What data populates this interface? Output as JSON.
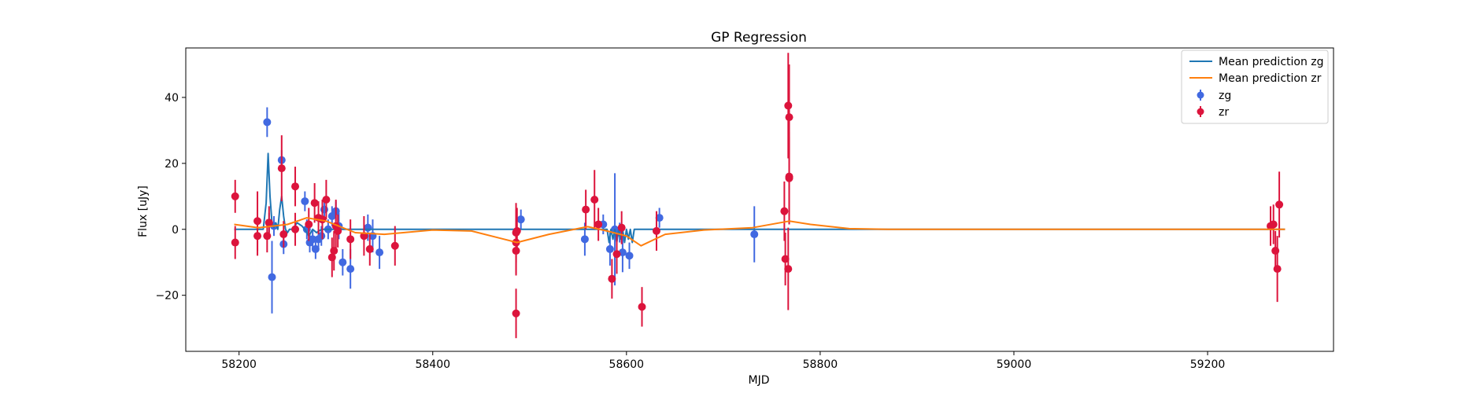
{
  "chart_data": {
    "type": "scatter",
    "title": "GP Regression",
    "xlabel": "MJD",
    "ylabel": "Flux [uJy]",
    "xlim": [
      58145,
      59330
    ],
    "ylim": [
      -37,
      55
    ],
    "xticks": [
      58200,
      58400,
      58600,
      58800,
      59000,
      59200
    ],
    "yticks": [
      -20,
      0,
      20,
      40
    ],
    "legend": {
      "position": "top-right",
      "entries": [
        "Mean prediction zg",
        "Mean prediction zr",
        "zg",
        "zr"
      ]
    },
    "colors": {
      "zg_line": "#1f77b4",
      "zr_line": "#ff7f0e",
      "zg_points": "#4169e1",
      "zr_points": "#dc143c"
    },
    "series": [
      {
        "name": "Mean prediction zg",
        "kind": "line",
        "x": [
          58195,
          58225,
          58228,
          58230,
          58232,
          58234,
          58236,
          58238,
          58240,
          58242,
          58244,
          58246,
          58248,
          58250,
          58252,
          58255,
          58260,
          58265,
          58268,
          58272,
          58276,
          58280,
          58285,
          58290,
          58300,
          58320,
          58400,
          58550,
          58580,
          58582,
          58584,
          58586,
          58588,
          58590,
          58592,
          58594,
          58596,
          58598,
          58600,
          58602,
          58604,
          58606,
          58608,
          58612,
          58700,
          58900,
          59280
        ],
        "y": [
          0,
          0,
          8,
          23,
          10,
          2,
          0.5,
          2,
          0,
          6,
          10,
          4,
          0,
          -1,
          0,
          0,
          2,
          1,
          0,
          -2,
          0,
          -1,
          0,
          0,
          0,
          0,
          0,
          0,
          0,
          -4,
          0,
          -3,
          0,
          -4,
          0,
          -3,
          0,
          -4,
          0,
          -3,
          0,
          -4,
          0,
          0,
          0,
          0,
          0
        ]
      },
      {
        "name": "Mean prediction zr",
        "kind": "line",
        "x": [
          58195,
          58220,
          58250,
          58270,
          58290,
          58320,
          58350,
          58400,
          58440,
          58487,
          58520,
          58560,
          58580,
          58600,
          58615,
          58640,
          58680,
          58730,
          58768,
          58790,
          58830,
          58870,
          59000,
          59280
        ],
        "y": [
          1.5,
          0.5,
          1.5,
          3.5,
          2.5,
          -1,
          -1.5,
          -0.2,
          -0.5,
          -4,
          -1.5,
          0.8,
          -0.5,
          -2,
          -5,
          -1.5,
          -0.2,
          0.5,
          2.5,
          1.5,
          0.2,
          0,
          0,
          0
        ]
      },
      {
        "name": "zg",
        "kind": "errorbar",
        "points": [
          [
            58229,
            32.5,
            4.5
          ],
          [
            58231,
            2,
            3
          ],
          [
            58234,
            -14.5,
            11
          ],
          [
            58236,
            1,
            3
          ],
          [
            58244,
            21,
            3
          ],
          [
            58246,
            -4.5,
            3
          ],
          [
            58268,
            8.5,
            3
          ],
          [
            58270,
            0,
            3
          ],
          [
            58273,
            -4,
            3
          ],
          [
            58276,
            -3,
            3
          ],
          [
            58279,
            -6,
            3
          ],
          [
            58282,
            -3,
            3
          ],
          [
            58285,
            -2,
            3
          ],
          [
            58288,
            6,
            3
          ],
          [
            58292,
            0,
            3
          ],
          [
            58296,
            4,
            3
          ],
          [
            58300,
            5.5,
            3
          ],
          [
            58303,
            1,
            4
          ],
          [
            58307,
            -10,
            4
          ],
          [
            58315,
            -12,
            6
          ],
          [
            58333,
            0.5,
            4
          ],
          [
            58338,
            -2,
            5
          ],
          [
            58345,
            -7,
            5
          ],
          [
            58491,
            3,
            3
          ],
          [
            58557,
            -3,
            5
          ],
          [
            58576,
            1.5,
            3
          ],
          [
            58583,
            -6,
            5
          ],
          [
            58588,
            0,
            17
          ],
          [
            58593,
            -1,
            3
          ],
          [
            58596,
            -7,
            6
          ],
          [
            58603,
            -8,
            4
          ],
          [
            58634,
            3.5,
            3
          ],
          [
            58732,
            -1.5,
            8.5
          ]
        ]
      },
      {
        "name": "zr",
        "kind": "errorbar",
        "points": [
          [
            58196,
            10,
            5
          ],
          [
            58196,
            -4,
            5
          ],
          [
            58219,
            2.5,
            9
          ],
          [
            58219,
            -2,
            6
          ],
          [
            58229,
            -2,
            5
          ],
          [
            58231,
            2,
            5
          ],
          [
            58244,
            18.5,
            10
          ],
          [
            58246,
            -1.5,
            4
          ],
          [
            58258,
            13,
            6
          ],
          [
            58258,
            0,
            5
          ],
          [
            58272,
            1.5,
            5
          ],
          [
            58278,
            8,
            6
          ],
          [
            58282,
            3.5,
            5
          ],
          [
            58286,
            3,
            6
          ],
          [
            58290,
            9,
            6
          ],
          [
            58296,
            -8.5,
            6
          ],
          [
            58298,
            -6.5,
            6
          ],
          [
            58300,
            1,
            8
          ],
          [
            58302,
            -0.5,
            5
          ],
          [
            58315,
            -3,
            6
          ],
          [
            58329,
            -2,
            6
          ],
          [
            58335,
            -6,
            5
          ],
          [
            58361,
            -5,
            6
          ],
          [
            58486,
            -25.5,
            7.5
          ],
          [
            58486,
            -6.5,
            7
          ],
          [
            58486,
            -4,
            10
          ],
          [
            58486,
            -1,
            9
          ],
          [
            58487,
            -0.5,
            7
          ],
          [
            58558,
            6,
            6
          ],
          [
            58567,
            9,
            9
          ],
          [
            58571,
            1.5,
            5
          ],
          [
            58585,
            -15,
            6
          ],
          [
            58590,
            -7.5,
            6
          ],
          [
            58595,
            0.5,
            5
          ],
          [
            58616,
            -23.5,
            6
          ],
          [
            58631,
            -0.5,
            6
          ],
          [
            58763,
            5.5,
            9
          ],
          [
            58764,
            -9,
            8
          ],
          [
            58767,
            -12,
            12.5
          ],
          [
            58767,
            37.5,
            16
          ],
          [
            58768,
            34,
            16
          ],
          [
            58768,
            15.5,
            14
          ],
          [
            58768,
            16,
            12
          ],
          [
            59265,
            1,
            6
          ],
          [
            59268,
            1.5,
            6
          ],
          [
            59270,
            -6.5,
            6
          ],
          [
            59272,
            -12,
            10
          ],
          [
            59274,
            7.5,
            10
          ]
        ]
      }
    ]
  }
}
